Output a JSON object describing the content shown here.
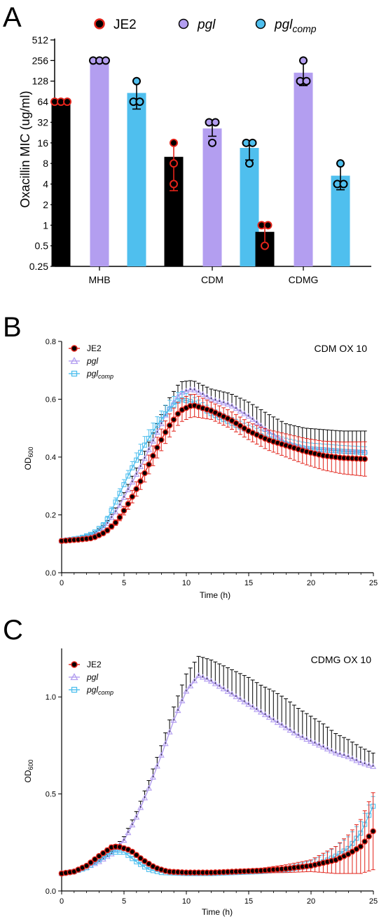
{
  "panels": [
    "A",
    "B",
    "C"
  ],
  "colors": {
    "JE2": "#000000",
    "JE2_edge": "#e2231a",
    "pgl": "#b39ef0",
    "pgl_comp": "#4fbfee",
    "err_black": "#000000",
    "err_red": "#e2231a"
  },
  "chart_data": [
    {
      "type": "bar",
      "panel": "A",
      "ylabel": "Oxacillin MIC (ug/ml)",
      "yscale": "log2",
      "ylim": [
        0.25,
        512
      ],
      "yticks": [
        "0.25",
        "0.5",
        "1",
        "2",
        "4",
        "8",
        "16",
        "32",
        "64",
        "128",
        "256",
        "512"
      ],
      "categories": [
        "MHB",
        "CDM",
        "CDMG"
      ],
      "legend": [
        {
          "name": "JE2",
          "italic": false
        },
        {
          "name": "pgl",
          "italic": true
        },
        {
          "name": "pgl",
          "sub": "comp",
          "italic": true
        }
      ],
      "legend_position": "top",
      "series": [
        {
          "name": "JE2",
          "values": [
            64,
            10,
            0.8
          ],
          "err": [
            [
              64,
              64
            ],
            [
              3.2,
              16
            ],
            [
              0.5,
              1
            ]
          ],
          "points": [
            [
              64,
              64,
              64
            ],
            [
              16,
              8,
              4
            ],
            [
              1,
              1,
              0.5
            ]
          ]
        },
        {
          "name": "pgl",
          "values": [
            256,
            26,
            170
          ],
          "err": [
            [
              256,
              256
            ],
            [
              20,
              33
            ],
            [
              110,
              256
            ]
          ],
          "points": [
            [
              256,
              256,
              256
            ],
            [
              32,
              32,
              16
            ],
            [
              256,
              128,
              128
            ]
          ]
        },
        {
          "name": "pgl comp",
          "values": [
            86,
            13.5,
            5.3
          ],
          "err": [
            [
              50,
              128
            ],
            [
              9,
              16
            ],
            [
              3.3,
              8
            ]
          ],
          "points": [
            [
              128,
              64,
              64
            ],
            [
              16,
              16,
              8
            ],
            [
              8,
              4,
              4
            ]
          ]
        }
      ]
    },
    {
      "type": "line",
      "panel": "B",
      "annotation": "CDM OX 10",
      "xlabel": "Time (h)",
      "ylabel": "OD",
      "ylabel_sub": "600",
      "xlim": [
        0,
        25
      ],
      "ylim": [
        0,
        0.8
      ],
      "xticks": [
        "0",
        "5",
        "10",
        "15",
        "20",
        "25"
      ],
      "yticks": [
        "0.0",
        "0.2",
        "0.4",
        "0.6",
        "0.8"
      ],
      "legend": [
        {
          "name": "JE2",
          "italic": false
        },
        {
          "name": "pgl",
          "italic": true
        },
        {
          "name": "pgl",
          "sub": "comp",
          "italic": true
        }
      ],
      "legend_position": "top-left",
      "series": [
        {
          "name": "JE2",
          "marker": "circle",
          "t": [
            0,
            1.5,
            2.5,
            3.5,
            4.5,
            5.5,
            6.5,
            7.5,
            8.5,
            9.5,
            10.5,
            12,
            13.5,
            15,
            16.5,
            18,
            19.5,
            21,
            22.5,
            24.5
          ],
          "y": [
            0.11,
            0.115,
            0.12,
            0.14,
            0.18,
            0.25,
            0.33,
            0.42,
            0.5,
            0.56,
            0.58,
            0.56,
            0.53,
            0.49,
            0.46,
            0.44,
            0.42,
            0.405,
            0.397,
            0.393
          ],
          "err": [
            0.003,
            0.004,
            0.005,
            0.008,
            0.01,
            0.02,
            0.03,
            0.035,
            0.04,
            0.04,
            0.04,
            0.03,
            0.03,
            0.03,
            0.035,
            0.04,
            0.045,
            0.05,
            0.055,
            0.06
          ]
        },
        {
          "name": "pgl",
          "marker": "triangle",
          "t": [
            0,
            1.5,
            2.5,
            3.5,
            4.5,
            5.5,
            6.5,
            7.5,
            8.5,
            9.5,
            10.5,
            12,
            13.5,
            15,
            16.5,
            18,
            19.5,
            21,
            22.5,
            24.5
          ],
          "y": [
            0.11,
            0.118,
            0.13,
            0.16,
            0.22,
            0.3,
            0.38,
            0.47,
            0.56,
            0.62,
            0.635,
            0.6,
            0.58,
            0.54,
            0.49,
            0.45,
            0.43,
            0.425,
            0.42,
            0.42
          ],
          "err": [
            0.003,
            0.004,
            0.006,
            0.01,
            0.015,
            0.02,
            0.025,
            0.03,
            0.035,
            0.04,
            0.03,
            0.035,
            0.04,
            0.05,
            0.06,
            0.065,
            0.07,
            0.07,
            0.07,
            0.07
          ]
        },
        {
          "name": "pgl comp",
          "marker": "square",
          "t": [
            0,
            1.5,
            2.5,
            3.5,
            4.5,
            5.5,
            6.5,
            7.5,
            8.5,
            9.5,
            10.5,
            12,
            13.5,
            15,
            16.5,
            18,
            19.5,
            21,
            22.5,
            24.5
          ],
          "y": [
            0.11,
            0.12,
            0.135,
            0.17,
            0.26,
            0.35,
            0.43,
            0.5,
            0.56,
            0.6,
            0.59,
            0.55,
            0.52,
            0.49,
            0.465,
            0.445,
            0.43,
            0.425,
            0.42,
            0.415
          ],
          "err": [
            0.003,
            0.004,
            0.006,
            0.01,
            0.015,
            0.02,
            0.03,
            0.03,
            0.03,
            0.03,
            0.02,
            0.02,
            0.02,
            0.02,
            0.02,
            0.02,
            0.02,
            0.02,
            0.02,
            0.02
          ]
        }
      ]
    },
    {
      "type": "line",
      "panel": "C",
      "annotation": "CDMG OX 10",
      "xlabel": "Time (h)",
      "ylabel": "OD",
      "ylabel_sub": "600",
      "xlim": [
        0,
        25
      ],
      "ylim": [
        0,
        1.25
      ],
      "xticks": [
        "0",
        "5",
        "10",
        "15",
        "20",
        "25"
      ],
      "yticks": [
        "0.0",
        "0.5",
        "1.0"
      ],
      "legend": [
        {
          "name": "JE2",
          "italic": false
        },
        {
          "name": "pgl",
          "italic": true
        },
        {
          "name": "pgl",
          "sub": "comp",
          "italic": true
        }
      ],
      "legend_position": "top-left",
      "series": [
        {
          "name": "JE2",
          "marker": "circle",
          "t": [
            0,
            1,
            2,
            3,
            4,
            4.5,
            5.5,
            6.5,
            7.5,
            8.5,
            10,
            12,
            14,
            16,
            18,
            20,
            21,
            22,
            23,
            24,
            25
          ],
          "y": [
            0.09,
            0.1,
            0.13,
            0.18,
            0.225,
            0.23,
            0.21,
            0.16,
            0.12,
            0.1,
            0.095,
            0.095,
            0.1,
            0.105,
            0.115,
            0.13,
            0.145,
            0.16,
            0.19,
            0.23,
            0.31
          ],
          "err": [
            0.005,
            0.005,
            0.008,
            0.01,
            0.012,
            0.012,
            0.01,
            0.01,
            0.01,
            0.008,
            0.008,
            0.008,
            0.01,
            0.012,
            0.02,
            0.03,
            0.05,
            0.07,
            0.1,
            0.14,
            0.2
          ]
        },
        {
          "name": "pgl",
          "marker": "triangle",
          "t": [
            0,
            1,
            2,
            3,
            4,
            5,
            6,
            7,
            8,
            9,
            10,
            11,
            12,
            13,
            14,
            15,
            16,
            17,
            18,
            19,
            20,
            21,
            22,
            23,
            24,
            25
          ],
          "y": [
            0.09,
            0.1,
            0.12,
            0.15,
            0.19,
            0.26,
            0.38,
            0.53,
            0.7,
            0.88,
            1.03,
            1.11,
            1.08,
            1.04,
            1.0,
            0.96,
            0.92,
            0.88,
            0.84,
            0.8,
            0.77,
            0.74,
            0.71,
            0.69,
            0.66,
            0.64
          ],
          "err": [
            0.005,
            0.006,
            0.008,
            0.01,
            0.015,
            0.02,
            0.03,
            0.04,
            0.05,
            0.07,
            0.09,
            0.1,
            0.11,
            0.12,
            0.13,
            0.14,
            0.14,
            0.15,
            0.15,
            0.14,
            0.13,
            0.12,
            0.1,
            0.09,
            0.08,
            0.07
          ]
        },
        {
          "name": "pgl comp",
          "marker": "square",
          "t": [
            0,
            1,
            2,
            3,
            4,
            5,
            6,
            7,
            8,
            10,
            12,
            14,
            16,
            18,
            20,
            21,
            22,
            23,
            24,
            25
          ],
          "y": [
            0.09,
            0.1,
            0.12,
            0.16,
            0.2,
            0.2,
            0.15,
            0.11,
            0.095,
            0.09,
            0.09,
            0.095,
            0.1,
            0.11,
            0.13,
            0.15,
            0.18,
            0.22,
            0.3,
            0.44
          ],
          "err": [
            0.005,
            0.005,
            0.006,
            0.008,
            0.01,
            0.01,
            0.008,
            0.008,
            0.006,
            0.006,
            0.006,
            0.008,
            0.01,
            0.015,
            0.025,
            0.035,
            0.05,
            0.06,
            0.06,
            0.05
          ]
        }
      ]
    }
  ]
}
